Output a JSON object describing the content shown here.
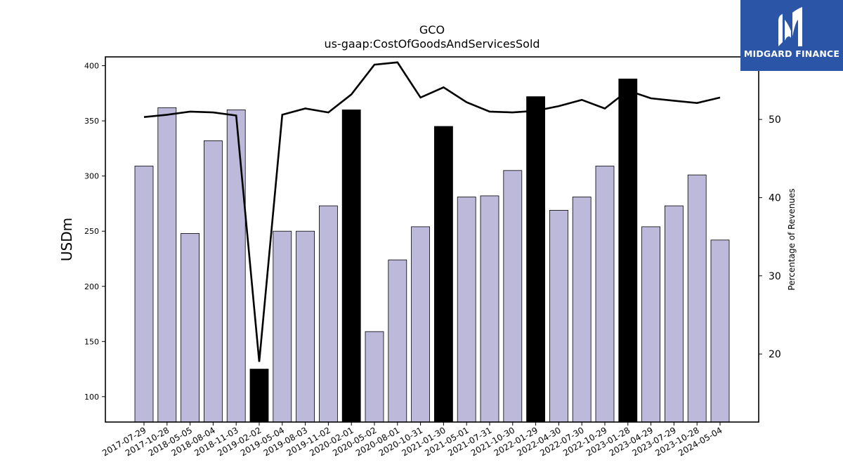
{
  "chart_data": {
    "type": "bar",
    "title": "GCO",
    "subtitle": "us-gaap:CostOfGoodsAndServicesSold",
    "ylabel": "USDm",
    "y2label": "Percentage of Revenues",
    "ylim": [
      77,
      408
    ],
    "y2lim": [
      11.3,
      58.0
    ],
    "yticks": [
      100,
      150,
      200,
      250,
      300,
      350,
      400
    ],
    "y2ticks": [
      20,
      30,
      40,
      50
    ],
    "grid": false,
    "categories": [
      "2017-07-29",
      "2017-10-28",
      "2018-05-05",
      "2018-08-04",
      "2018-11-03",
      "2019-02-02",
      "2019-05-04",
      "2019-08-03",
      "2019-11-02",
      "2020-02-01",
      "2020-05-02",
      "2020-08-01",
      "2020-10-31",
      "2021-01-30",
      "2021-05-01",
      "2021-07-31",
      "2021-10-30",
      "2022-01-29",
      "2022-04-30",
      "2022-07-30",
      "2022-10-29",
      "2023-01-28",
      "2023-04-29",
      "2023-07-29",
      "2023-10-28",
      "2024-05-04"
    ],
    "series": [
      {
        "kind": "bar",
        "values": [
          309,
          362,
          248,
          332,
          360,
          125,
          250,
          250,
          273,
          360,
          159,
          224,
          254,
          345,
          281,
          282,
          305,
          372,
          269,
          281,
          309,
          388,
          254,
          273,
          301,
          242
        ],
        "highlight": [
          false,
          false,
          false,
          false,
          false,
          true,
          false,
          false,
          false,
          true,
          false,
          false,
          false,
          true,
          false,
          false,
          false,
          true,
          false,
          false,
          false,
          true,
          false,
          false,
          false,
          false
        ]
      },
      {
        "kind": "line",
        "axis": "right",
        "values": [
          50.3,
          50.6,
          51.0,
          50.9,
          50.5,
          19.0,
          50.6,
          51.4,
          50.9,
          53.2,
          57.0,
          57.3,
          52.8,
          54.1,
          52.2,
          51.0,
          50.9,
          51.1,
          51.7,
          52.5,
          51.4,
          53.7,
          52.7,
          52.4,
          52.1,
          52.8
        ]
      }
    ],
    "colors": {
      "bar": "#bcb9da",
      "highlight": "#000000",
      "line": "#000000"
    }
  },
  "logo": {
    "text": "MIDGARD FINANCE",
    "background": "#2b56a8"
  }
}
